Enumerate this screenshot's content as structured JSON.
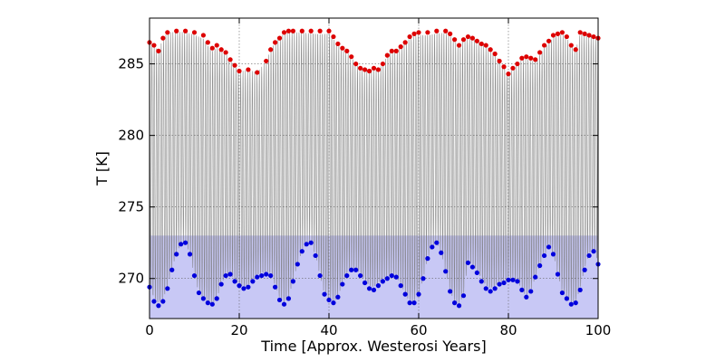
{
  "chart_data": {
    "type": "line",
    "title": "",
    "xlabel": "Time [Approx. Westerosi Years]",
    "ylabel": "T [K]",
    "xlim": [
      0,
      100
    ],
    "ylim": [
      267.2,
      288.2
    ],
    "x_ticks": [
      0,
      20,
      40,
      60,
      80,
      100
    ],
    "y_ticks": [
      270,
      275,
      280,
      285
    ],
    "x_tick_labels": [
      "0",
      "20",
      "40",
      "60",
      "80",
      "100"
    ],
    "y_tick_labels": [
      "270",
      "275",
      "280",
      "285"
    ],
    "grid": true,
    "legend": false,
    "shaded_region": {
      "y_from": 267.2,
      "y_to": 273.0,
      "color": "#c8c8f5"
    },
    "oscillation": {
      "color": "#7a7a7a"
    },
    "series": [
      {
        "role": "annual-maximum",
        "color": "#dd0000",
        "x": [
          0,
          1,
          2,
          3,
          4,
          6,
          8,
          10,
          12,
          13,
          14,
          15,
          16,
          17,
          18,
          19,
          20,
          22,
          24,
          26,
          27,
          28,
          29,
          30,
          31,
          32,
          34,
          36,
          38,
          40,
          41,
          42,
          43,
          44,
          45,
          46,
          47,
          48,
          49,
          50,
          51,
          52,
          53,
          54,
          55,
          56,
          57,
          58,
          59,
          60,
          62,
          64,
          66,
          67,
          68,
          69,
          70,
          71,
          72,
          73,
          74,
          75,
          76,
          77,
          78,
          79,
          80,
          81,
          82,
          83,
          84,
          85,
          86,
          87,
          88,
          89,
          90,
          91,
          92,
          93,
          94,
          95,
          96,
          97,
          98,
          99,
          100
        ],
        "y": [
          286.5,
          286.3,
          285.9,
          286.8,
          287.2,
          287.3,
          287.3,
          287.2,
          287.0,
          286.5,
          286.1,
          286.3,
          286.0,
          285.8,
          285.3,
          284.9,
          284.5,
          284.6,
          284.4,
          285.2,
          286.0,
          286.5,
          286.8,
          287.2,
          287.3,
          287.3,
          287.3,
          287.3,
          287.3,
          287.3,
          286.9,
          286.4,
          286.1,
          285.9,
          285.5,
          285.0,
          284.7,
          284.6,
          284.5,
          284.7,
          284.6,
          285.0,
          285.6,
          285.9,
          285.9,
          286.2,
          286.5,
          286.9,
          287.1,
          287.2,
          287.2,
          287.3,
          287.3,
          287.1,
          286.7,
          286.3,
          286.7,
          286.9,
          286.8,
          286.6,
          286.4,
          286.3,
          286.0,
          285.7,
          285.2,
          284.8,
          284.3,
          284.7,
          285.0,
          285.4,
          285.5,
          285.4,
          285.3,
          285.8,
          286.3,
          286.6,
          287.0,
          287.1,
          287.2,
          286.9,
          286.3,
          286.0,
          287.2,
          287.1,
          287.0,
          286.9,
          286.8
        ]
      },
      {
        "role": "annual-minimum",
        "color": "#0000dd",
        "x": [
          0,
          1,
          2,
          3,
          4,
          5,
          6,
          7,
          8,
          9,
          10,
          11,
          12,
          13,
          14,
          15,
          16,
          17,
          18,
          19,
          20,
          21,
          22,
          23,
          24,
          25,
          26,
          27,
          28,
          29,
          30,
          31,
          32,
          33,
          34,
          35,
          36,
          37,
          38,
          39,
          40,
          41,
          42,
          43,
          44,
          45,
          46,
          47,
          48,
          49,
          50,
          51,
          52,
          53,
          54,
          55,
          56,
          57,
          58,
          59,
          60,
          61,
          62,
          63,
          64,
          65,
          66,
          67,
          68,
          69,
          70,
          71,
          72,
          73,
          74,
          75,
          76,
          77,
          78,
          79,
          80,
          81,
          82,
          83,
          84,
          85,
          86,
          87,
          88,
          89,
          90,
          91,
          92,
          93,
          94,
          95,
          96,
          97,
          98,
          99,
          100
        ],
        "y": [
          269.4,
          268.4,
          268.1,
          268.4,
          269.3,
          270.6,
          271.7,
          272.4,
          272.5,
          271.7,
          270.2,
          269.0,
          268.6,
          268.3,
          268.2,
          268.6,
          269.6,
          270.2,
          270.3,
          269.8,
          269.5,
          269.3,
          269.4,
          269.8,
          270.1,
          270.2,
          270.3,
          270.2,
          269.4,
          268.5,
          268.2,
          268.6,
          269.8,
          271.0,
          271.9,
          272.4,
          272.5,
          271.6,
          270.2,
          268.9,
          268.5,
          268.3,
          268.7,
          269.6,
          270.2,
          270.6,
          270.6,
          270.2,
          269.7,
          269.3,
          269.2,
          269.5,
          269.8,
          270.0,
          270.2,
          270.1,
          269.5,
          268.9,
          268.3,
          268.3,
          268.9,
          270.0,
          271.4,
          272.2,
          272.5,
          271.8,
          270.5,
          269.1,
          268.3,
          268.1,
          268.8,
          271.1,
          270.8,
          270.4,
          269.8,
          269.3,
          269.1,
          269.3,
          269.6,
          269.7,
          269.9,
          269.9,
          269.8,
          269.2,
          268.7,
          269.1,
          270.1,
          270.9,
          271.6,
          272.2,
          271.7,
          270.3,
          269.0,
          268.6,
          268.2,
          268.3,
          269.2,
          270.6,
          271.6,
          271.9,
          271.0
        ]
      }
    ]
  }
}
